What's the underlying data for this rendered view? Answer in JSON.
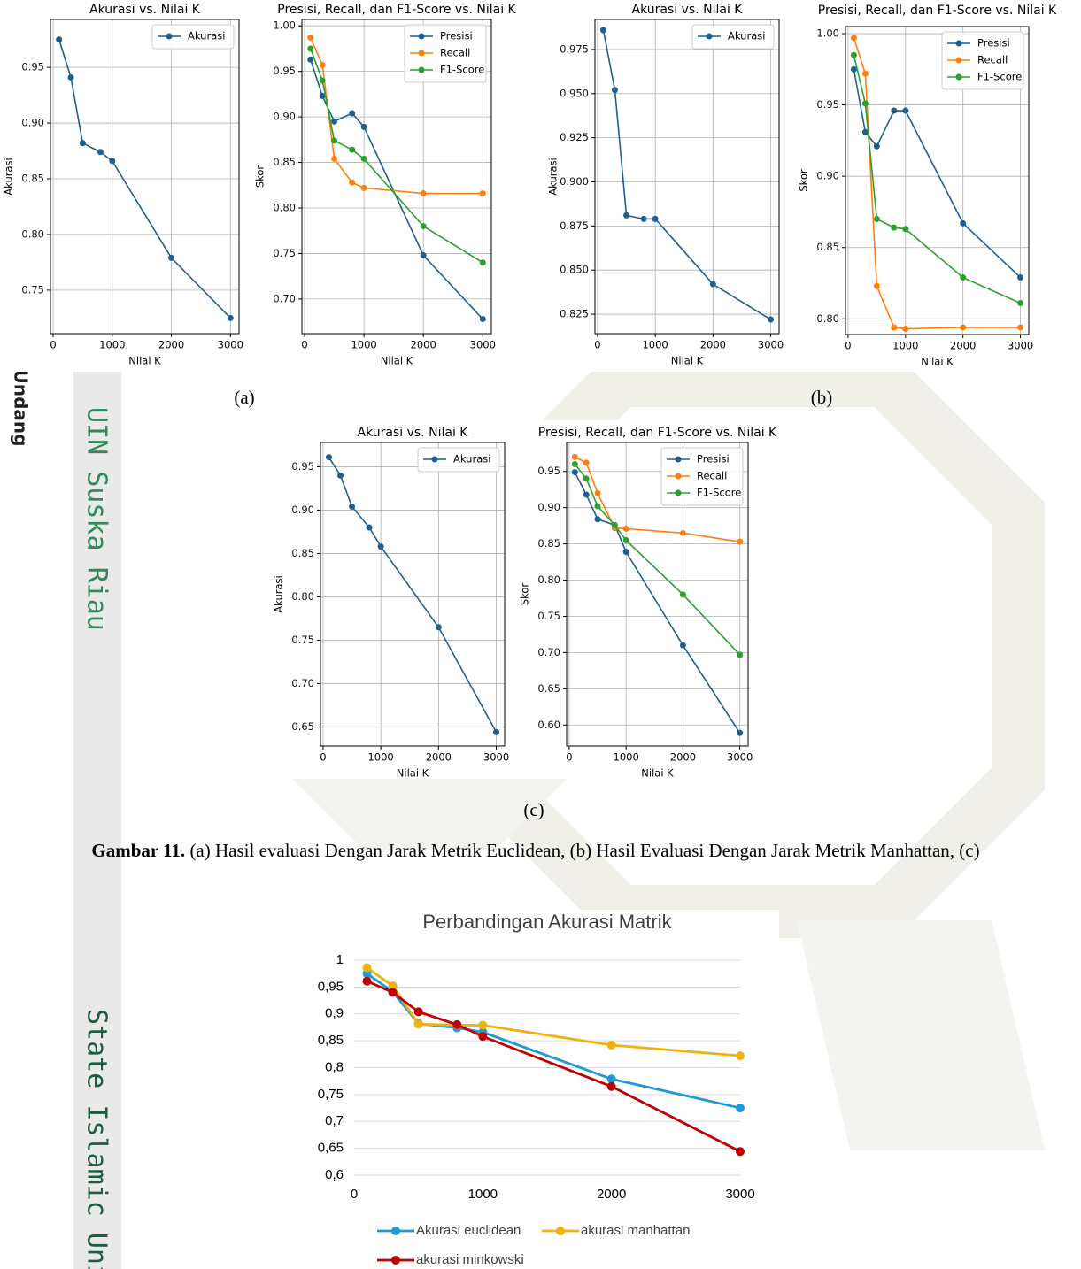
{
  "watermark": {
    "undang": ".Undang",
    "uin": "UIN Suska Riau",
    "state": "State Islamic Uni"
  },
  "panel_labels": [
    "(a)",
    "(b)",
    "(c)"
  ],
  "caption": {
    "label": "Gambar 11.",
    "text": "(a) Hasil evaluasi Dengan Jarak Metrik Euclidean, (b) Hasil Evaluasi Dengan Jarak Metrik Manhattan, (c)"
  },
  "chart_data": [
    {
      "type": "line",
      "title": "Akurasi vs. Nilai K",
      "x_label": "Nilai K",
      "y_label": "Akurasi",
      "x": [
        100,
        300,
        500,
        800,
        1000,
        2000,
        3000
      ],
      "series": [
        {
          "name": "Akurasi",
          "color": "#1f5f8f",
          "values": [
            0.975,
            0.941,
            0.882,
            0.874,
            0.866,
            0.779,
            0.725
          ]
        }
      ],
      "xlim": [
        -45,
        3145
      ],
      "xticks": [
        0,
        1000,
        2000,
        3000
      ],
      "ylim": [
        0.711,
        0.993
      ],
      "yticks": [
        0.75,
        {
          "value": 0.8,
          "label": "0.80"
        },
        0.85,
        {
          "value": 0.9,
          "label": "0.90"
        },
        0.95
      ],
      "grid": true,
      "legend": "upper right"
    },
    {
      "type": "line",
      "title": "Presisi, Recall, dan F1-Score vs. Nilai K",
      "x_label": "Nilai K",
      "y_label": "Skor",
      "x": [
        100,
        300,
        500,
        800,
        1000,
        2000,
        3000
      ],
      "series": [
        {
          "name": "Presisi",
          "color": "#1f5f8f",
          "values": [
            0.963,
            0.923,
            0.895,
            0.904,
            0.889,
            0.748,
            0.678
          ]
        },
        {
          "name": "Recall",
          "color": "#ff7f0e",
          "values": [
            0.987,
            0.957,
            0.854,
            0.828,
            0.822,
            0.816,
            0.816
          ]
        },
        {
          "name": "F1-Score",
          "color": "#2ca02c",
          "values": [
            0.975,
            0.94,
            0.874,
            0.864,
            0.854,
            0.78,
            0.74
          ]
        }
      ],
      "xlim": [
        -45,
        3145
      ],
      "xticks": [
        0,
        1000,
        2000,
        3000
      ],
      "ylim": [
        0.662,
        1.007
      ],
      "yticks": [
        {
          "value": 0.7,
          "label": "0.70"
        },
        0.75,
        {
          "value": 0.8,
          "label": "0.80"
        },
        0.85,
        {
          "value": 0.9,
          "label": "0.90"
        },
        0.95,
        {
          "value": 1,
          "label": "1.00"
        }
      ],
      "grid": true,
      "legend": "upper right"
    },
    {
      "type": "line",
      "title": "Akurasi vs. Nilai K",
      "x_label": "Nilai K",
      "y_label": "Akurasi",
      "x": [
        100,
        300,
        500,
        800,
        1000,
        2000,
        3000
      ],
      "series": [
        {
          "name": "Akurasi",
          "color": "#1f5f8f",
          "values": [
            0.986,
            0.952,
            0.881,
            0.879,
            0.879,
            0.842,
            0.822
          ]
        }
      ],
      "xlim": [
        -45,
        3145
      ],
      "xticks": [
        0,
        1000,
        2000,
        3000
      ],
      "ylim": [
        0.814,
        0.992
      ],
      "yticks": [
        0.825,
        {
          "value": 0.85,
          "label": "0.850"
        },
        0.875,
        {
          "value": 0.9,
          "label": "0.900"
        },
        0.925,
        {
          "value": 0.95,
          "label": "0.950"
        },
        0.975
      ],
      "grid": true,
      "legend": "upper right"
    },
    {
      "type": "line",
      "title": "Presisi, Recall, dan F1-Score vs. Nilai K",
      "x_label": "Nilai K",
      "y_label": "Skor",
      "x": [
        100,
        300,
        500,
        800,
        1000,
        2000,
        3000
      ],
      "series": [
        {
          "name": "Presisi",
          "color": "#1f5f8f",
          "values": [
            0.975,
            0.931,
            0.921,
            0.946,
            0.946,
            0.867,
            0.829
          ]
        },
        {
          "name": "Recall",
          "color": "#ff7f0e",
          "values": [
            0.997,
            0.972,
            0.823,
            0.794,
            0.793,
            0.794,
            0.794
          ]
        },
        {
          "name": "F1-Score",
          "color": "#2ca02c",
          "values": [
            0.985,
            0.951,
            0.87,
            0.864,
            0.863,
            0.829,
            0.811
          ]
        }
      ],
      "xlim": [
        -45,
        3145
      ],
      "xticks": [
        0,
        1000,
        2000,
        3000
      ],
      "ylim": [
        0.789,
        1.005
      ],
      "yticks": [
        {
          "value": 0.8,
          "label": "0.80"
        },
        0.85,
        {
          "value": 0.9,
          "label": "0.90"
        },
        0.95,
        {
          "value": 1,
          "label": "1.00"
        }
      ],
      "grid": true,
      "legend": "upper right"
    },
    {
      "type": "line",
      "title": "Akurasi vs. Nilai K",
      "x_label": "Nilai K",
      "y_label": "Akurasi",
      "x": [
        100,
        300,
        500,
        800,
        1000,
        2000,
        3000
      ],
      "series": [
        {
          "name": "Akurasi",
          "color": "#1f5f8f",
          "values": [
            0.961,
            0.94,
            0.904,
            0.88,
            0.858,
            0.765,
            0.644
          ]
        }
      ],
      "xlim": [
        -45,
        3145
      ],
      "xticks": [
        0,
        1000,
        2000,
        3000
      ],
      "ylim": [
        0.628,
        0.978
      ],
      "yticks": [
        0.65,
        {
          "value": 0.7,
          "label": "0.70"
        },
        0.75,
        {
          "value": 0.8,
          "label": "0.80"
        },
        0.85,
        {
          "value": 0.9,
          "label": "0.90"
        },
        0.95
      ],
      "grid": true,
      "legend": "upper right"
    },
    {
      "type": "line",
      "title": "Presisi, Recall, dan F1-Score vs. Nilai K",
      "x_label": "Nilai K",
      "y_label": "Skor",
      "x": [
        100,
        300,
        500,
        800,
        1000,
        2000,
        3000
      ],
      "series": [
        {
          "name": "Presisi",
          "color": "#1f5f8f",
          "values": [
            0.949,
            0.918,
            0.884,
            0.876,
            0.839,
            0.71,
            0.589
          ]
        },
        {
          "name": "Recall",
          "color": "#ff7f0e",
          "values": [
            0.97,
            0.962,
            0.92,
            0.872,
            0.871,
            0.865,
            0.853
          ]
        },
        {
          "name": "F1-Score",
          "color": "#2ca02c",
          "values": [
            0.96,
            0.94,
            0.902,
            0.876,
            0.855,
            0.78,
            0.697
          ]
        }
      ],
      "xlim": [
        -45,
        3145
      ],
      "xticks": [
        0,
        1000,
        2000,
        3000
      ],
      "ylim": [
        0.571,
        0.99
      ],
      "yticks": [
        {
          "value": 0.6,
          "label": "0.60"
        },
        0.65,
        {
          "value": 0.7,
          "label": "0.70"
        },
        0.75,
        {
          "value": 0.8,
          "label": "0.80"
        },
        0.85,
        {
          "value": 0.9,
          "label": "0.90"
        },
        0.95
      ],
      "grid": true,
      "legend": "upper right"
    },
    {
      "type": "line",
      "title": "Perbandingan Akurasi Matrik",
      "x": [
        100,
        300,
        500,
        800,
        1000,
        2000,
        3000
      ],
      "series": [
        {
          "name": "Akurasi euclidean",
          "color": "#1f9ad6",
          "values": [
            0.975,
            0.941,
            0.882,
            0.874,
            0.866,
            0.779,
            0.725
          ]
        },
        {
          "name": "akurasi manhattan",
          "color": "#f2b00c",
          "values": [
            0.986,
            0.952,
            0.881,
            0.879,
            0.879,
            0.842,
            0.822
          ]
        },
        {
          "name": "akurasi minkowski",
          "color": "#c00000",
          "values": [
            0.961,
            0.94,
            0.904,
            0.88,
            0.858,
            0.765,
            0.644
          ]
        }
      ],
      "xlim": [
        0,
        3000
      ],
      "xticks": [
        0,
        1000,
        2000,
        3000
      ],
      "ylim": [
        0.6,
        1
      ],
      "yticks": [
        {
          "value": 0.6,
          "label": "0,6"
        },
        {
          "value": 0.65,
          "label": "0,65"
        },
        {
          "value": 0.7,
          "label": "0,7"
        },
        {
          "value": 0.75,
          "label": "0,75"
        },
        {
          "value": 0.8,
          "label": "0,8"
        },
        {
          "value": 0.85,
          "label": "0,85"
        },
        {
          "value": 0.9,
          "label": "0,9"
        },
        {
          "value": 0.95,
          "label": "0,95"
        },
        1
      ],
      "grid": "y",
      "legend": "bottom"
    }
  ]
}
